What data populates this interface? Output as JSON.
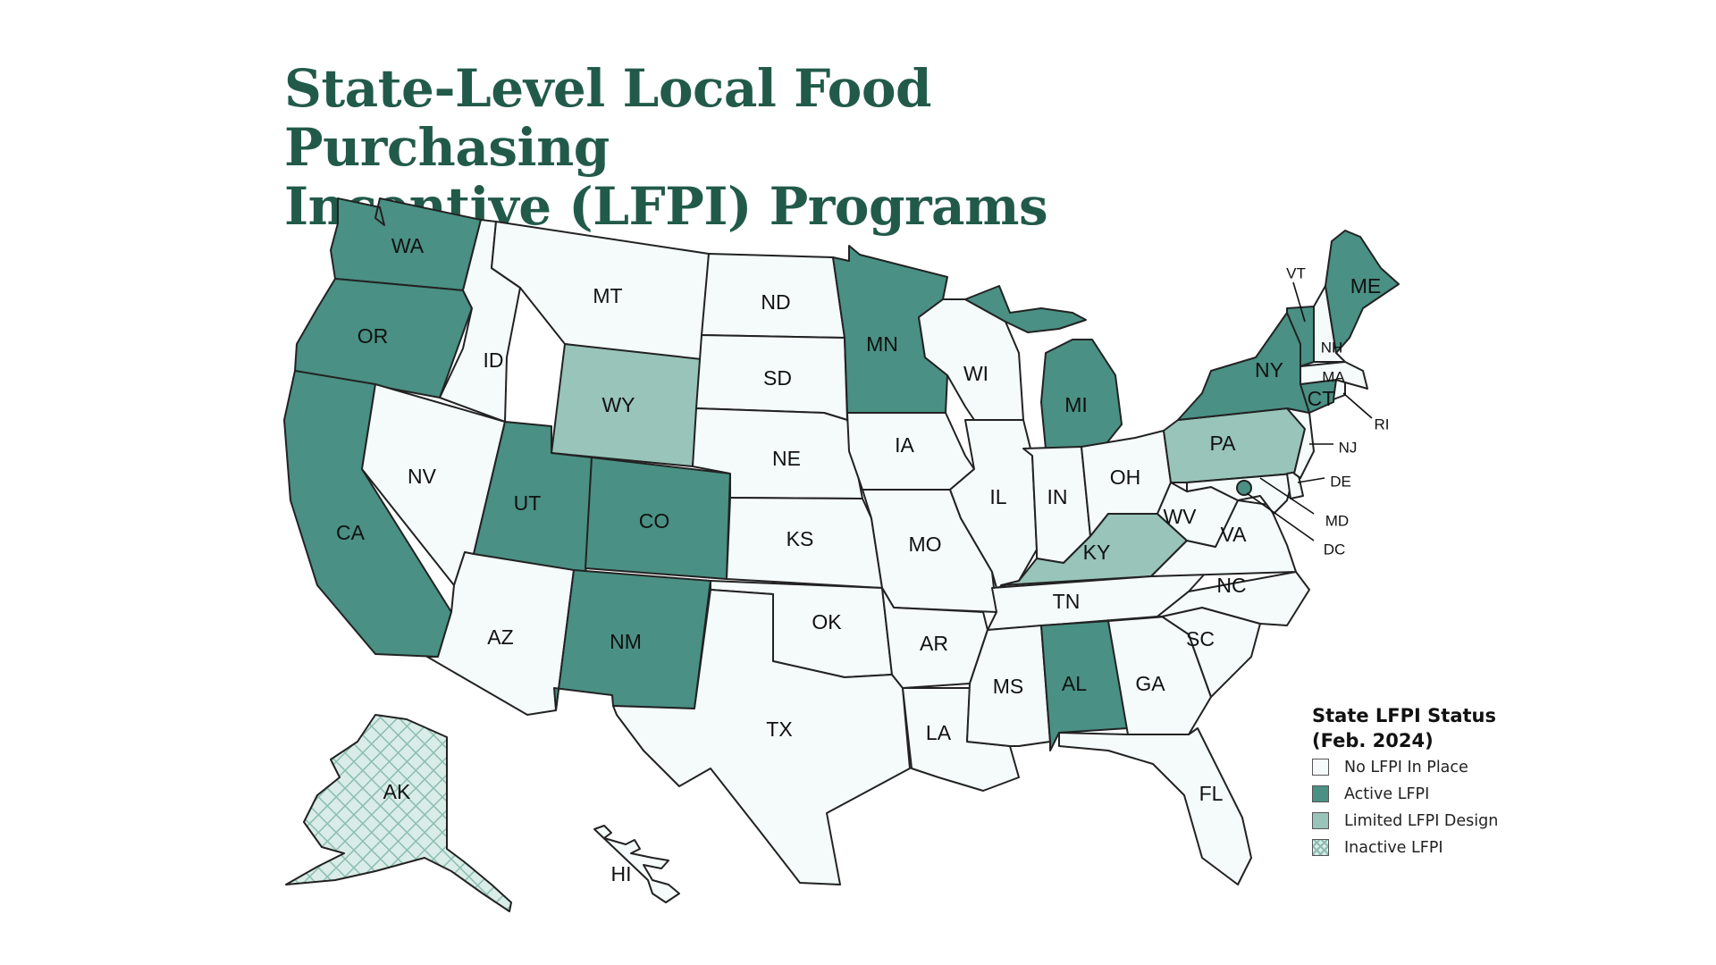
{
  "title": {
    "line1": "State-Level Local Food Purchasing",
    "line2": "Incentive (LFPI) Programs"
  },
  "colors": {
    "title": "#225a4a",
    "no_lfpi": "#f4fbfa",
    "active": "#4a9084",
    "limited": "#98c4b9",
    "inactive_hatch": "#8cbdb1",
    "border": "#222222"
  },
  "legend": {
    "title_line1": "State LFPI Status",
    "title_line2": "(Feb. 2024)",
    "items": [
      {
        "label": "No LFPI In Place",
        "status": "none"
      },
      {
        "label": "Active LFPI",
        "status": "active"
      },
      {
        "label": "Limited LFPI Design",
        "status": "limited"
      },
      {
        "label": "Inactive LFPI",
        "status": "inactive"
      }
    ]
  },
  "states": {
    "WA": {
      "label": "WA",
      "status": "active"
    },
    "OR": {
      "label": "OR",
      "status": "active"
    },
    "CA": {
      "label": "CA",
      "status": "active"
    },
    "ID": {
      "label": "ID",
      "status": "none"
    },
    "NV": {
      "label": "NV",
      "status": "none"
    },
    "MT": {
      "label": "MT",
      "status": "none"
    },
    "WY": {
      "label": "WY",
      "status": "limited"
    },
    "UT": {
      "label": "UT",
      "status": "active"
    },
    "CO": {
      "label": "CO",
      "status": "active"
    },
    "AZ": {
      "label": "AZ",
      "status": "none"
    },
    "NM": {
      "label": "NM",
      "status": "active"
    },
    "ND": {
      "label": "ND",
      "status": "none"
    },
    "SD": {
      "label": "SD",
      "status": "none"
    },
    "NE": {
      "label": "NE",
      "status": "none"
    },
    "KS": {
      "label": "KS",
      "status": "none"
    },
    "OK": {
      "label": "OK",
      "status": "none"
    },
    "TX": {
      "label": "TX",
      "status": "none"
    },
    "MN": {
      "label": "MN",
      "status": "active"
    },
    "IA": {
      "label": "IA",
      "status": "none"
    },
    "MO": {
      "label": "MO",
      "status": "none"
    },
    "AR": {
      "label": "AR",
      "status": "none"
    },
    "LA": {
      "label": "LA",
      "status": "none"
    },
    "WI": {
      "label": "WI",
      "status": "none"
    },
    "IL": {
      "label": "IL",
      "status": "none"
    },
    "MI": {
      "label": "MI",
      "status": "active"
    },
    "IN": {
      "label": "IN",
      "status": "none"
    },
    "OH": {
      "label": "OH",
      "status": "none"
    },
    "KY": {
      "label": "KY",
      "status": "limited"
    },
    "TN": {
      "label": "TN",
      "status": "none"
    },
    "MS": {
      "label": "MS",
      "status": "none"
    },
    "AL": {
      "label": "AL",
      "status": "active"
    },
    "GA": {
      "label": "GA",
      "status": "none"
    },
    "FL": {
      "label": "FL",
      "status": "none"
    },
    "SC": {
      "label": "SC",
      "status": "none"
    },
    "NC": {
      "label": "NC",
      "status": "none"
    },
    "VA": {
      "label": "VA",
      "status": "none"
    },
    "WV": {
      "label": "WV",
      "status": "none"
    },
    "PA": {
      "label": "PA",
      "status": "limited"
    },
    "NY": {
      "label": "NY",
      "status": "active"
    },
    "VT": {
      "label": "VT",
      "status": "active"
    },
    "NH": {
      "label": "NH",
      "status": "none"
    },
    "ME": {
      "label": "ME",
      "status": "active"
    },
    "MA": {
      "label": "MA",
      "status": "none"
    },
    "RI": {
      "label": "RI",
      "status": "none"
    },
    "CT": {
      "label": "CT",
      "status": "active"
    },
    "NJ": {
      "label": "NJ",
      "status": "none"
    },
    "DE": {
      "label": "DE",
      "status": "none"
    },
    "MD": {
      "label": "MD",
      "status": "none"
    },
    "DC": {
      "label": "DC",
      "status": "active"
    },
    "AK": {
      "label": "AK",
      "status": "inactive"
    },
    "HI": {
      "label": "HI",
      "status": "none"
    }
  }
}
